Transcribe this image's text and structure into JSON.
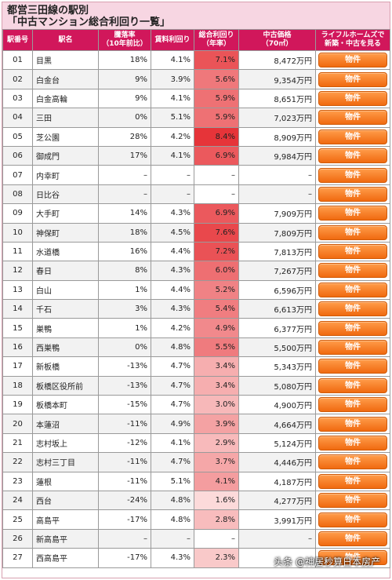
{
  "title": {
    "line1": "都営三田線の駅別",
    "line2": "「中古マンション総合利回り一覧」"
  },
  "headers": {
    "no": "駅番号",
    "name": "駅名",
    "drop": "騰落率\n（10年前比）",
    "rent": "賃料利回り",
    "total": "総合利回り\n（年率）",
    "price": "中古価格\n（70㎡）",
    "link": "ライフルホームズで\n新築・中古を見る"
  },
  "button_label": "物件",
  "colors": {
    "header_bg": "#d1175b",
    "title_bg": "#f7d6e2",
    "button": "#f07a1e"
  },
  "rows": [
    {
      "no": "01",
      "name": "目黒",
      "drop": "18%",
      "rent": "4.1%",
      "total": "7.1%",
      "total_value": 7.1,
      "price": "8,472万円"
    },
    {
      "no": "02",
      "name": "白金台",
      "drop": "9%",
      "rent": "3.9%",
      "total": "5.6%",
      "total_value": 5.6,
      "price": "9,354万円"
    },
    {
      "no": "03",
      "name": "白金高輪",
      "drop": "9%",
      "rent": "4.1%",
      "total": "5.9%",
      "total_value": 5.9,
      "price": "8,651万円"
    },
    {
      "no": "04",
      "name": "三田",
      "drop": "0%",
      "rent": "5.1%",
      "total": "5.9%",
      "total_value": 5.9,
      "price": "7,023万円"
    },
    {
      "no": "05",
      "name": "芝公園",
      "drop": "28%",
      "rent": "4.2%",
      "total": "8.4%",
      "total_value": 8.4,
      "price": "8,909万円"
    },
    {
      "no": "06",
      "name": "御成門",
      "drop": "17%",
      "rent": "4.1%",
      "total": "6.9%",
      "total_value": 6.9,
      "price": "9,984万円"
    },
    {
      "no": "07",
      "name": "内幸町",
      "drop": "–",
      "rent": "–",
      "total": "–",
      "total_value": null,
      "price": "–"
    },
    {
      "no": "08",
      "name": "日比谷",
      "drop": "–",
      "rent": "–",
      "total": "–",
      "total_value": null,
      "price": "–"
    },
    {
      "no": "09",
      "name": "大手町",
      "drop": "14%",
      "rent": "4.3%",
      "total": "6.9%",
      "total_value": 6.9,
      "price": "7,909万円"
    },
    {
      "no": "10",
      "name": "神保町",
      "drop": "18%",
      "rent": "4.5%",
      "total": "7.6%",
      "total_value": 7.6,
      "price": "7,809万円"
    },
    {
      "no": "11",
      "name": "水道橋",
      "drop": "16%",
      "rent": "4.4%",
      "total": "7.2%",
      "total_value": 7.2,
      "price": "7,813万円"
    },
    {
      "no": "12",
      "name": "春日",
      "drop": "8%",
      "rent": "4.3%",
      "total": "6.0%",
      "total_value": 6.0,
      "price": "7,267万円"
    },
    {
      "no": "13",
      "name": "白山",
      "drop": "1%",
      "rent": "4.4%",
      "total": "5.2%",
      "total_value": 5.2,
      "price": "6,596万円"
    },
    {
      "no": "14",
      "name": "千石",
      "drop": "3%",
      "rent": "4.3%",
      "total": "5.4%",
      "total_value": 5.4,
      "price": "6,613万円"
    },
    {
      "no": "15",
      "name": "巣鴨",
      "drop": "1%",
      "rent": "4.2%",
      "total": "4.9%",
      "total_value": 4.9,
      "price": "6,377万円"
    },
    {
      "no": "16",
      "name": "西巣鴨",
      "drop": "0%",
      "rent": "4.8%",
      "total": "5.5%",
      "total_value": 5.5,
      "price": "5,500万円"
    },
    {
      "no": "17",
      "name": "新板橋",
      "drop": "-13%",
      "rent": "4.7%",
      "total": "3.4%",
      "total_value": 3.4,
      "price": "5,343万円"
    },
    {
      "no": "18",
      "name": "板橋区役所前",
      "drop": "-13%",
      "rent": "4.7%",
      "total": "3.4%",
      "total_value": 3.4,
      "price": "5,080万円"
    },
    {
      "no": "19",
      "name": "板橋本町",
      "drop": "-15%",
      "rent": "4.7%",
      "total": "3.0%",
      "total_value": 3.0,
      "price": "4,900万円"
    },
    {
      "no": "20",
      "name": "本蓮沼",
      "drop": "-11%",
      "rent": "4.9%",
      "total": "3.9%",
      "total_value": 3.9,
      "price": "4,664万円"
    },
    {
      "no": "21",
      "name": "志村坂上",
      "drop": "-12%",
      "rent": "4.1%",
      "total": "2.9%",
      "total_value": 2.9,
      "price": "5,124万円"
    },
    {
      "no": "22",
      "name": "志村三丁目",
      "drop": "-11%",
      "rent": "4.7%",
      "total": "3.7%",
      "total_value": 3.7,
      "price": "4,446万円"
    },
    {
      "no": "23",
      "name": "蓮根",
      "drop": "-11%",
      "rent": "5.1%",
      "total": "4.1%",
      "total_value": 4.1,
      "price": "4,187万円"
    },
    {
      "no": "24",
      "name": "西台",
      "drop": "-24%",
      "rent": "4.8%",
      "total": "1.6%",
      "total_value": 1.6,
      "price": "4,277万円"
    },
    {
      "no": "25",
      "name": "高島平",
      "drop": "-17%",
      "rent": "4.8%",
      "total": "2.8%",
      "total_value": 2.8,
      "price": "3,991万円"
    },
    {
      "no": "26",
      "name": "新高島平",
      "drop": "–",
      "rent": "–",
      "total": "–",
      "total_value": null,
      "price": "–"
    },
    {
      "no": "27",
      "name": "西高島平",
      "drop": "-17%",
      "rent": "4.3%",
      "total": "2.3%",
      "total_value": 2.3,
      "price": ""
    }
  ],
  "watermark": "头条 @神居秒算日本房产"
}
